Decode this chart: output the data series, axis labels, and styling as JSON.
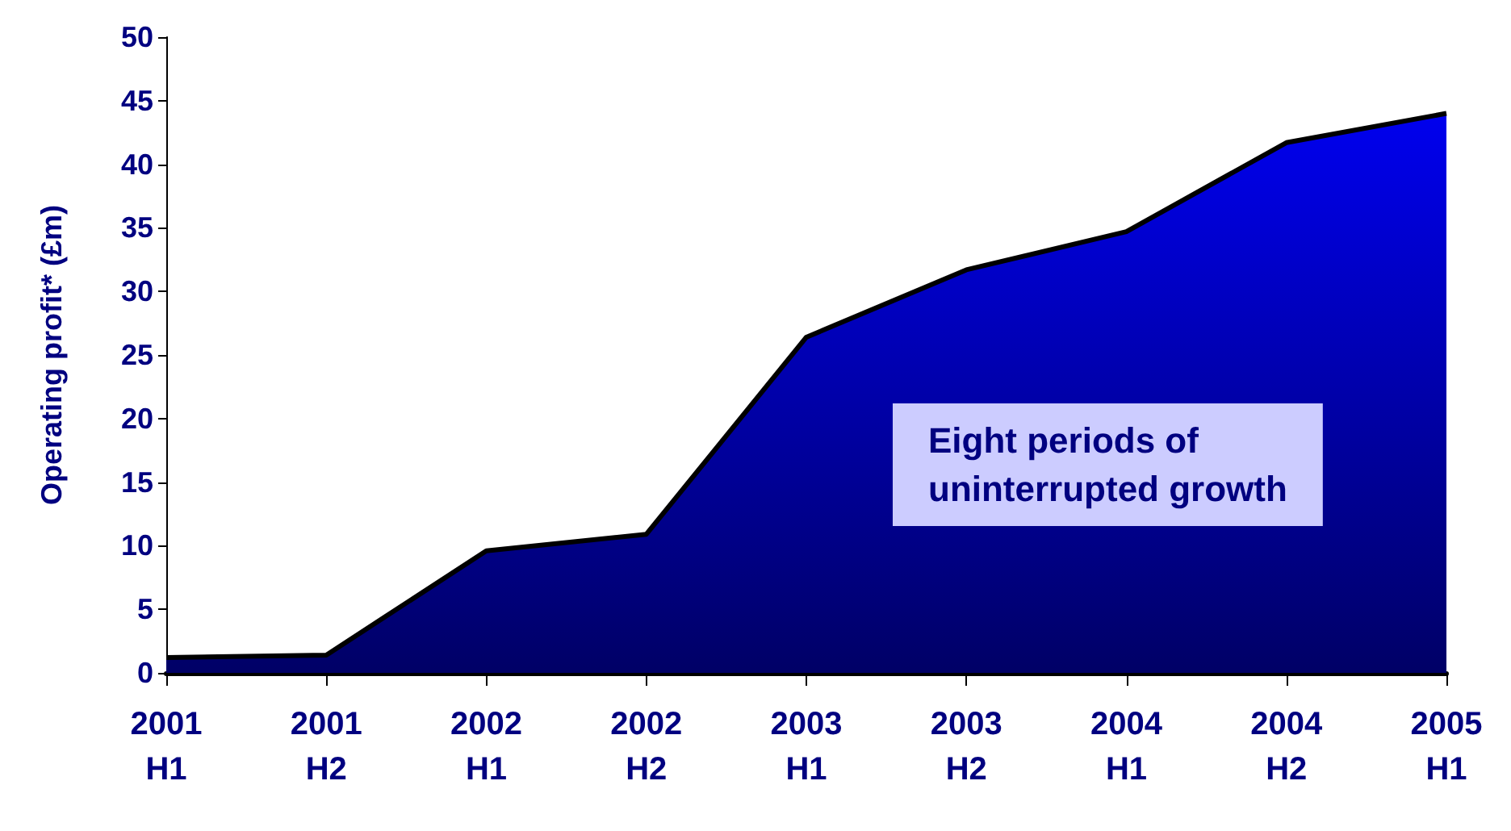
{
  "chart_data": {
    "type": "area",
    "ylabel": "Operating profit* (£m)",
    "categories": [
      "2001\nH1",
      "2001\nH2",
      "2002\nH1",
      "2002\nH2",
      "2003\nH1",
      "2003\nH2",
      "2004\nH1",
      "2004\nH2",
      "2005\nH1"
    ],
    "values": [
      1.2,
      1.4,
      9.6,
      10.9,
      26.4,
      31.7,
      34.7,
      41.7,
      44.0
    ],
    "color": "#0000ee",
    "ylim": [
      0,
      50
    ],
    "yticks": [
      0,
      5,
      10,
      15,
      20,
      25,
      30,
      35,
      40,
      45,
      50
    ],
    "grid": false,
    "annotations": [
      "Eight periods of\nuninterrupted growth"
    ]
  }
}
